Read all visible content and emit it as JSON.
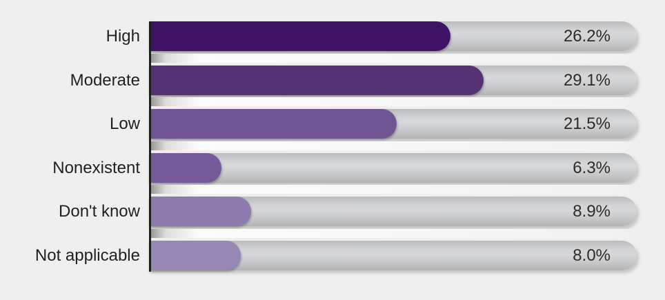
{
  "chart_data": {
    "type": "bar",
    "orientation": "horizontal",
    "title": "",
    "xlabel": "",
    "ylabel": "",
    "categories": [
      "High",
      "Moderate",
      "Low",
      "Nonexistent",
      "Don't know",
      "Not applicable"
    ],
    "values": [
      26.2,
      29.1,
      21.5,
      6.3,
      8.9,
      8.0
    ],
    "value_labels": [
      "26.2%",
      "29.1%",
      "21.5%",
      "6.3%",
      "8.9%",
      "8.0%"
    ],
    "xlim": [
      0,
      42.4
    ],
    "grid": false,
    "legend": false,
    "bar_colors": [
      "#3e1365",
      "#543273",
      "#6f5594",
      "#745a99",
      "#8d7bae",
      "#9688b5"
    ],
    "track_color": "#cdced0",
    "background_color": "#eeefee",
    "axis_color": "#1e1e1e",
    "category_label_color": "#231f20",
    "value_label_color": "#2b2b2b"
  }
}
